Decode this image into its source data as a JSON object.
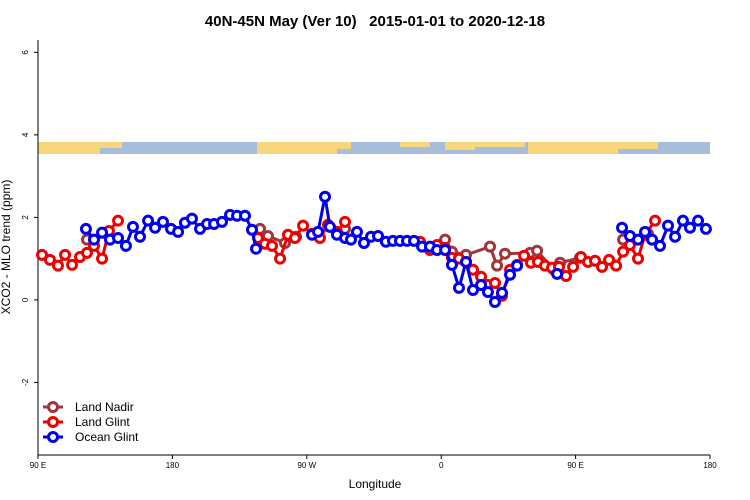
{
  "chart_data": {
    "type": "line",
    "title": "40N-45N May (Ver 10)   2015-01-01 to 2020-12-18",
    "xlabel": "Longitude",
    "ylabel": "XCO2 - MLO trend (ppm)",
    "xlim": [
      90,
      540
    ],
    "ylim": [
      -3.76,
      6.3
    ],
    "xticks": [
      {
        "value": 90,
        "label": "90 E"
      },
      180,
      {
        "value": 270,
        "label": "90 W"
      },
      {
        "value": 360,
        "label": "0"
      },
      {
        "value": 450,
        "label": "90 E"
      },
      {
        "value": 540,
        "label": "180"
      }
    ],
    "yticks": [
      -2,
      0,
      2,
      4,
      6
    ],
    "legend": "lower left",
    "series": [
      {
        "name": "Land Nadir",
        "color": "#a0353a",
        "x": [
          122.8,
          137.5,
          null,
          238.7,
          244.0,
          255.4,
          262.8,
          null,
          295.6,
          null,
          362.6,
          367.2,
          376.6,
          392.7,
          397.4,
          402.7,
          419.5,
          424.2,
          435.0,
          439.6,
          452.9,
          null,
          481.8,
          498.5
        ],
        "values": [
          1.46,
          1.55,
          null,
          1.72,
          1.55,
          1.38,
          1.53,
          null,
          1.72,
          null,
          1.46,
          1.17,
          1.09,
          1.29,
          0.83,
          1.12,
          1.14,
          1.19,
          0.75,
          0.9,
          1.02,
          null,
          1.46,
          1.6
        ]
      },
      {
        "name": "Land Glint",
        "color": "#ee0000",
        "x": [
          92.7,
          98.0,
          103.4,
          108.1,
          112.8,
          118.1,
          122.8,
          127.5,
          132.9,
          137.5,
          143.6,
          null,
          237.3,
          242.0,
          246.7,
          252.1,
          257.4,
          262.1,
          267.5,
          273.5,
          278.8,
          284.2,
          290.2,
          295.6,
          null,
          345.8,
          352.5,
          357.2,
          362.6,
          367.2,
          371.9,
          376.6,
          381.3,
          386.7,
          391.3,
          396.0,
          400.7,
          406.1,
          410.8,
          415.5,
          420.1,
          424.8,
          429.5,
          434.2,
          438.9,
          443.6,
          448.3,
          453.6,
          458.3,
          463.0,
          467.7,
          472.4,
          477.1,
          481.8,
          486.4,
          491.8,
          496.5,
          503.2
        ],
        "values": [
          1.09,
          0.97,
          0.83,
          1.09,
          0.85,
          1.04,
          1.14,
          1.31,
          1.0,
          1.67,
          1.92,
          null,
          1.5,
          1.36,
          1.31,
          1.0,
          1.58,
          1.5,
          1.8,
          1.6,
          1.5,
          1.82,
          1.65,
          1.89,
          null,
          1.41,
          1.21,
          1.33,
          1.26,
          1.02,
          1.0,
          0.92,
          0.73,
          0.56,
          0.36,
          0.41,
          0.1,
          0.73,
          0.85,
          1.07,
          0.9,
          0.92,
          0.83,
          0.78,
          0.8,
          0.58,
          0.8,
          1.04,
          0.92,
          0.95,
          0.8,
          0.97,
          0.83,
          1.17,
          1.33,
          1.0,
          1.58,
          1.92
        ]
      },
      {
        "name": "Ocean Glint",
        "color": "#0000ee",
        "x": [
          122.1,
          127.5,
          132.9,
          138.2,
          143.6,
          148.9,
          153.6,
          158.3,
          163.7,
          168.4,
          173.7,
          179.1,
          183.8,
          188.4,
          193.1,
          198.5,
          203.2,
          207.9,
          213.2,
          218.6,
          223.3,
          228.6,
          233.3,
          236.0,
          null,
          273.5,
          277.5,
          282.2,
          285.5,
          290.2,
          295.6,
          299.6,
          303.6,
          308.3,
          313.0,
          317.7,
          323.0,
          327.7,
          332.4,
          337.1,
          341.8,
          347.2,
          352.5,
          357.2,
          362.6,
          367.2,
          371.9,
          376.6,
          381.3,
          386.7,
          391.3,
          396.0,
          400.7,
          406.1,
          410.8,
          null,
          437.6,
          null,
          481.1,
          486.4,
          491.8,
          496.5,
          501.2,
          506.5,
          511.9,
          516.6,
          521.9,
          526.6,
          532.0,
          537.3
        ],
        "values": [
          1.72,
          1.46,
          1.63,
          1.46,
          1.5,
          1.31,
          1.77,
          1.53,
          1.92,
          1.75,
          1.89,
          1.72,
          1.65,
          1.87,
          1.97,
          1.72,
          1.84,
          1.84,
          1.89,
          2.06,
          2.04,
          2.04,
          1.7,
          1.24,
          null,
          1.58,
          1.65,
          2.5,
          1.77,
          1.58,
          1.5,
          1.46,
          1.65,
          1.38,
          1.53,
          1.55,
          1.41,
          1.43,
          1.43,
          1.43,
          1.43,
          1.29,
          1.29,
          1.21,
          1.21,
          0.85,
          0.29,
          0.92,
          0.24,
          0.36,
          0.19,
          -0.05,
          0.17,
          0.61,
          0.83,
          null,
          0.63,
          null,
          1.75,
          1.55,
          1.46,
          1.65,
          1.46,
          1.31,
          1.8,
          1.53,
          1.92,
          1.75,
          1.92,
          1.72
        ]
      }
    ]
  }
}
